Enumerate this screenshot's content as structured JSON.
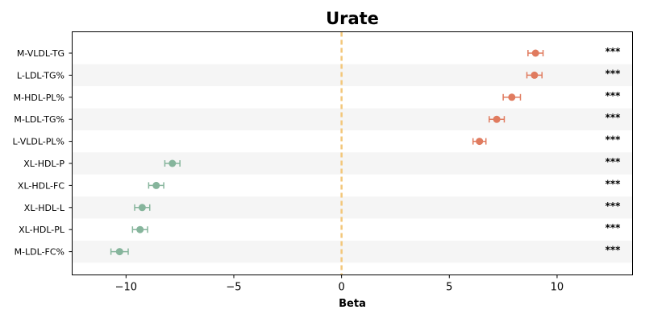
{
  "chart_data": {
    "type": "forest",
    "title": "Urate",
    "xlabel": "Beta",
    "xlim": [
      -12.5,
      13.5
    ],
    "xticks": [
      -10,
      -5,
      0,
      5,
      10
    ],
    "xtick_labels": [
      "−10",
      "−5",
      "0",
      "5",
      "10"
    ],
    "reference_line": 0,
    "colors": {
      "positive": "#e07b5f",
      "negative": "#86b59c",
      "reference": "#f3c77a",
      "stripe": "#f5f5f5"
    },
    "rows": [
      {
        "label": "M-VLDL-TG",
        "beta": 9.0,
        "ci": [
          8.65,
          9.35
        ],
        "sig": "***"
      },
      {
        "label": "L-LDL-TG%",
        "beta": 8.95,
        "ci": [
          8.6,
          9.3
        ],
        "sig": "***"
      },
      {
        "label": "M-HDL-PL%",
        "beta": 7.9,
        "ci": [
          7.5,
          8.3
        ],
        "sig": "***"
      },
      {
        "label": "M-LDL-TG%",
        "beta": 7.2,
        "ci": [
          6.85,
          7.55
        ],
        "sig": "***"
      },
      {
        "label": "L-VLDL-PL%",
        "beta": 6.4,
        "ci": [
          6.1,
          6.7
        ],
        "sig": "***"
      },
      {
        "label": "XL-HDL-P",
        "beta": -7.85,
        "ci": [
          -8.2,
          -7.5
        ],
        "sig": "***"
      },
      {
        "label": "XL-HDL-FC",
        "beta": -8.6,
        "ci": [
          -8.95,
          -8.25
        ],
        "sig": "***"
      },
      {
        "label": "XL-HDL-L",
        "beta": -9.25,
        "ci": [
          -9.6,
          -8.9
        ],
        "sig": "***"
      },
      {
        "label": "XL-HDL-PL",
        "beta": -9.35,
        "ci": [
          -9.7,
          -9.0
        ],
        "sig": "***"
      },
      {
        "label": "M-LDL-FC%",
        "beta": -10.3,
        "ci": [
          -10.7,
          -9.9
        ],
        "sig": "***"
      }
    ]
  }
}
